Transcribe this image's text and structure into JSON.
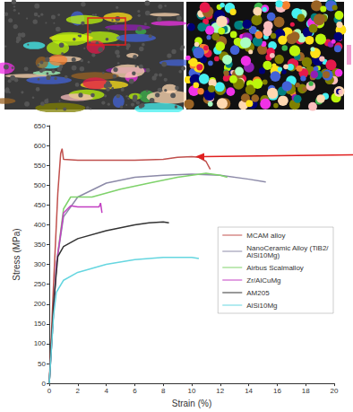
{
  "chart_data": {
    "type": "line",
    "x_label": "Strain (%)",
    "y_label": "Stress (MPa)",
    "xlim": [
      0,
      20
    ],
    "xticks": [
      0,
      2,
      4,
      6,
      8,
      10,
      12,
      14,
      16,
      18,
      20
    ],
    "ylim": [
      0,
      650
    ],
    "yticks": [
      0,
      50,
      100,
      150,
      200,
      250,
      300,
      350,
      400,
      450,
      500,
      550,
      600,
      650
    ],
    "grid": false,
    "legend": "right",
    "marker": "none",
    "line_style": "solid",
    "series": [
      {
        "name": "MCAM alloy",
        "color": "#c0504d",
        "x": [
          0,
          0.3,
          0.6,
          0.8,
          0.9,
          1.0,
          2,
          4,
          6,
          8,
          9,
          10,
          10.5,
          11,
          11.3
        ],
        "values": [
          0,
          250,
          480,
          580,
          592,
          565,
          563,
          563,
          563,
          565,
          570,
          572,
          570,
          560,
          540
        ]
      },
      {
        "name": "NanoCeramic Alloy (TiB2/AlSi10Mg)",
        "color": "#8c8aa8",
        "x": [
          0,
          0.5,
          1,
          2,
          4,
          6,
          8,
          10,
          12,
          14,
          15.2
        ],
        "values": [
          0,
          300,
          420,
          470,
          505,
          520,
          525,
          528,
          525,
          515,
          508
        ]
      },
      {
        "name": "Airbus Scalmalloy",
        "color": "#7fd26b",
        "x": [
          0,
          0.5,
          1,
          1.5,
          3,
          5,
          7,
          9,
          10,
          11,
          12,
          12.5
        ],
        "values": [
          0,
          300,
          440,
          470,
          470,
          490,
          505,
          520,
          525,
          530,
          525,
          520
        ]
      },
      {
        "name": "Zr/AlCuMg",
        "color": "#c23fc2",
        "x": [
          0,
          0.5,
          1,
          1.5,
          2,
          3,
          3.5,
          3.6,
          3.7
        ],
        "values": [
          0,
          300,
          430,
          448,
          445,
          445,
          445,
          455,
          430
        ]
      },
      {
        "name": "AM205",
        "color": "#333333",
        "x": [
          0,
          0.3,
          0.6,
          1,
          2,
          4,
          6,
          7,
          8,
          8.4
        ],
        "values": [
          0,
          200,
          320,
          345,
          365,
          385,
          400,
          405,
          407,
          405
        ]
      },
      {
        "name": "AlSi10Mg",
        "color": "#66d6e0",
        "x": [
          0,
          0.3,
          0.5,
          1,
          2,
          4,
          6,
          8,
          10,
          10.5
        ],
        "values": [
          0,
          170,
          230,
          260,
          280,
          300,
          312,
          318,
          318,
          315
        ]
      }
    ]
  }
}
